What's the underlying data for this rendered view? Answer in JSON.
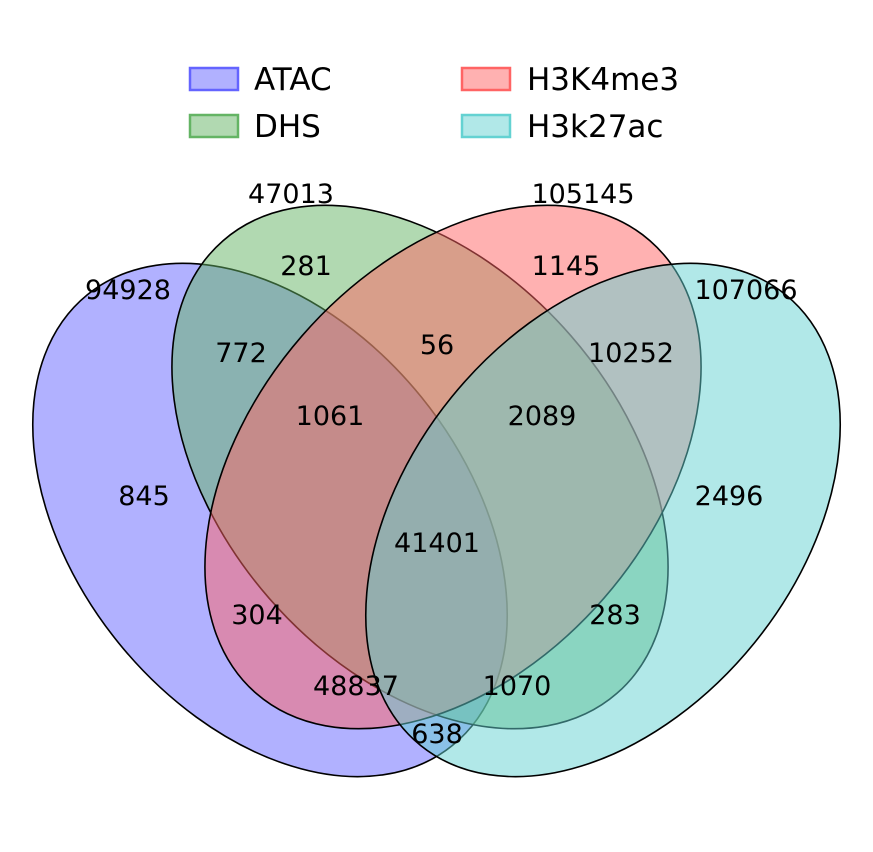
{
  "legend": [
    {
      "label": "ATAC",
      "color": "#6464ff"
    },
    {
      "label": "DHS",
      "color": "#64b464"
    },
    {
      "label": "H3K4me3",
      "color": "#ff6464"
    },
    {
      "label": "H3k27ac",
      "color": "#64d2d2"
    }
  ],
  "set_totals": {
    "atac": "94928",
    "dhs": "47013",
    "h3k4me3": "105145",
    "h3k27ac": "107066"
  },
  "regions": {
    "atac_only": "845",
    "dhs_only": "281",
    "h3k4me3_only": "1145",
    "h3k27ac_only": "2496",
    "atac_dhs": "772",
    "dhs_h3k4me3": "56",
    "h3k4me3_h3k27ac": "10252",
    "atac_dhs_h3k4me3": "1061",
    "dhs_h3k4me3_h3k27ac": "2089",
    "all_four": "41401",
    "atac_h3k4me3": "304",
    "dhs_h3k27ac": "283",
    "atac_h3k4me3_h3k27ac": "48837",
    "atac_dhs_h3k27ac": "1070",
    "atac_h3k27ac": "638"
  }
}
